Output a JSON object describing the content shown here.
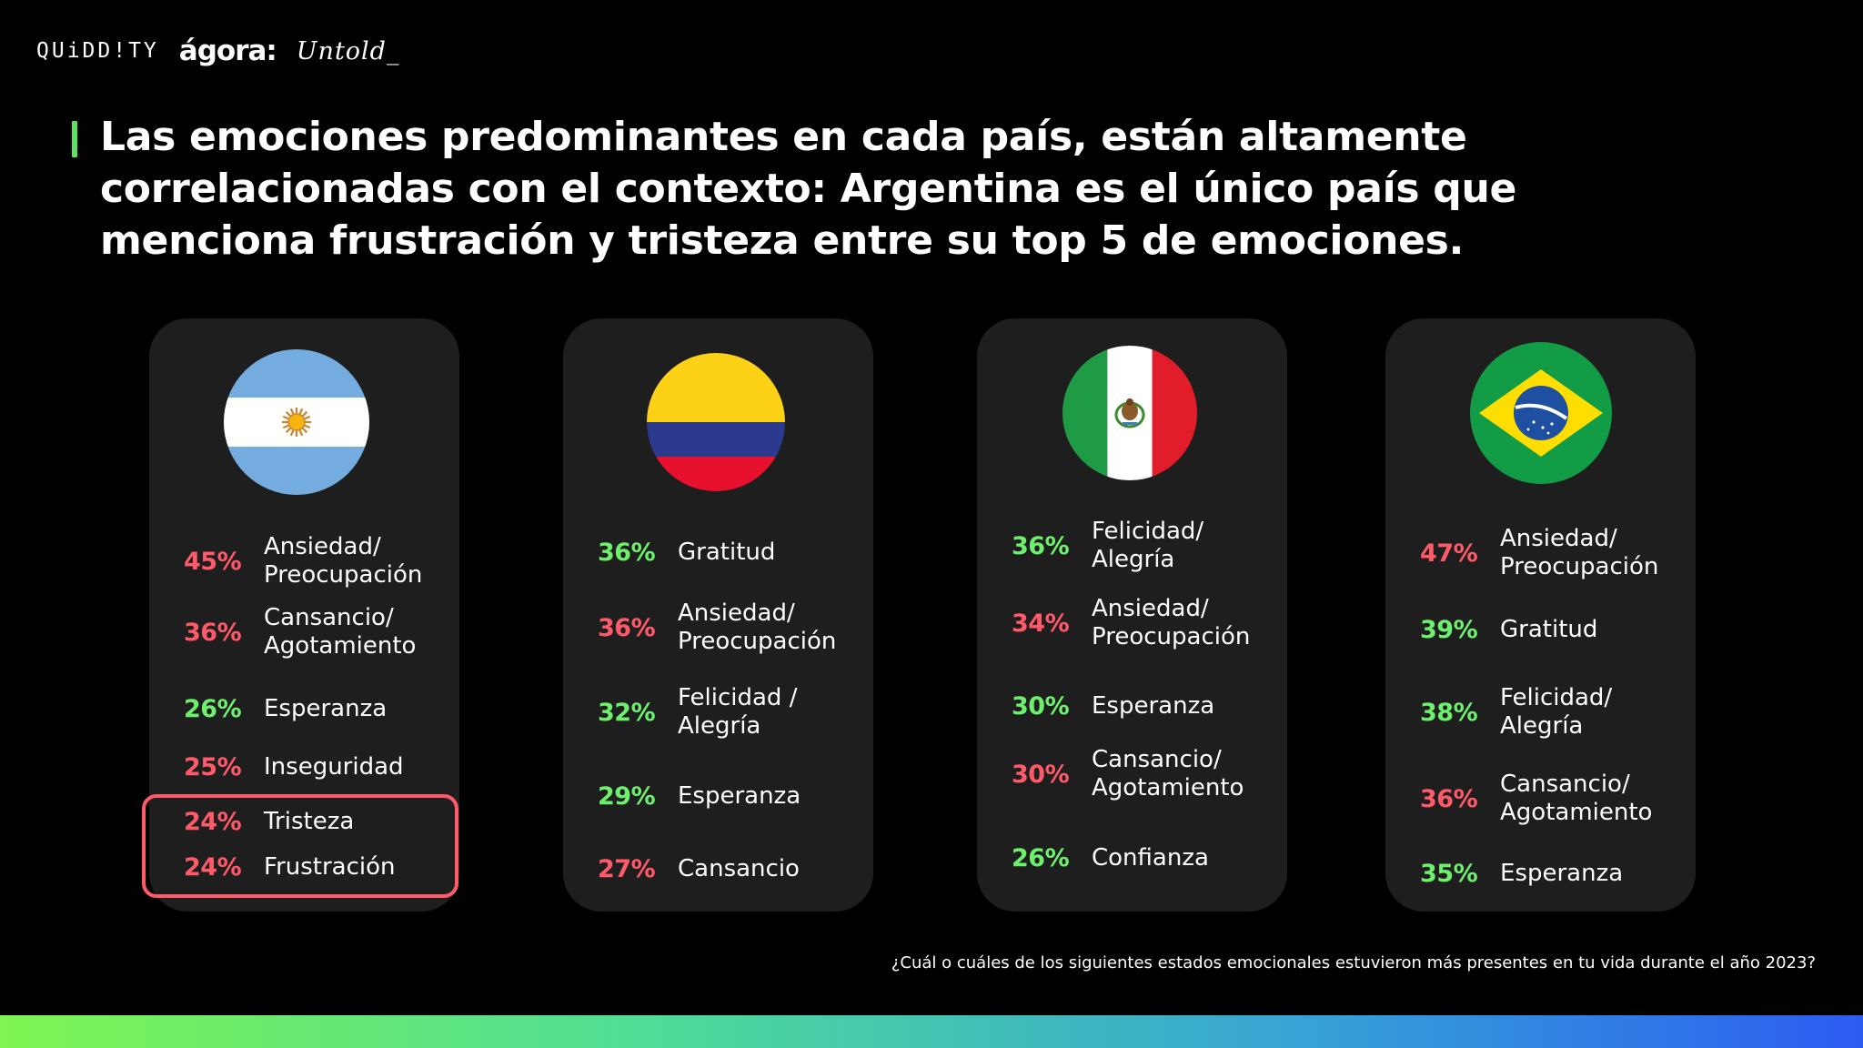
{
  "logos": {
    "quiddity": "QUiDD!TY",
    "agora": "ágora:",
    "untold": "Untold_"
  },
  "title": "Las emociones predominantes en cada país, están altamente correlacionadas con el contexto: Argentina es el único país que menciona frustración y tristeza entre su top 5 de emociones.",
  "colors": {
    "negative": "#ff5a6a",
    "positive": "#6ef06e",
    "accent": "#5be35b",
    "card": "#1e1e1e"
  },
  "cards": [
    {
      "flag": "argentina-flag",
      "items": [
        {
          "pct": "45%",
          "label": [
            "Ansiedad/",
            "Preocupación"
          ],
          "tone": "red"
        },
        {
          "pct": "36%",
          "label": [
            "Cansancio/",
            "Agotamiento"
          ],
          "tone": "red"
        },
        {
          "pct": "26%",
          "label": [
            "Esperanza"
          ],
          "tone": "green"
        },
        {
          "pct": "25%",
          "label": [
            "Inseguridad"
          ],
          "tone": "red"
        },
        {
          "pct": "24%",
          "label": [
            "Tristeza"
          ],
          "tone": "red"
        },
        {
          "pct": "24%",
          "label": [
            "Frustración"
          ],
          "tone": "red"
        }
      ]
    },
    {
      "flag": "colombia-flag",
      "items": [
        {
          "pct": "36%",
          "label": [
            "Gratitud"
          ],
          "tone": "green"
        },
        {
          "pct": "36%",
          "label": [
            "Ansiedad/",
            "Preocupación"
          ],
          "tone": "red"
        },
        {
          "pct": "32%",
          "label": [
            "Felicidad /",
            "Alegría"
          ],
          "tone": "green"
        },
        {
          "pct": "29%",
          "label": [
            "Esperanza"
          ],
          "tone": "green"
        },
        {
          "pct": "27%",
          "label": [
            "Cansancio"
          ],
          "tone": "red"
        }
      ]
    },
    {
      "flag": "mexico-flag",
      "items": [
        {
          "pct": "36%",
          "label": [
            "Felicidad/",
            "Alegría"
          ],
          "tone": "green"
        },
        {
          "pct": "34%",
          "label": [
            "Ansiedad/",
            "Preocupación"
          ],
          "tone": "red"
        },
        {
          "pct": "30%",
          "label": [
            "Esperanza"
          ],
          "tone": "green"
        },
        {
          "pct": "30%",
          "label": [
            "Cansancio/",
            "Agotamiento"
          ],
          "tone": "red"
        },
        {
          "pct": "26%",
          "label": [
            "Confianza"
          ],
          "tone": "green"
        }
      ]
    },
    {
      "flag": "brazil-flag",
      "items": [
        {
          "pct": "47%",
          "label": [
            "Ansiedad/",
            "Preocupación"
          ],
          "tone": "red"
        },
        {
          "pct": "39%",
          "label": [
            "Gratitud"
          ],
          "tone": "green"
        },
        {
          "pct": "38%",
          "label": [
            "Felicidad/",
            "Alegría"
          ],
          "tone": "green"
        },
        {
          "pct": "36%",
          "label": [
            "Cansancio/",
            "Agotamiento"
          ],
          "tone": "red"
        },
        {
          "pct": "35%",
          "label": [
            "Esperanza"
          ],
          "tone": "green"
        }
      ]
    }
  ],
  "footnote": "¿Cuál o cuáles de los siguientes estados emocionales estuvieron más presentes en tu vida durante el año 2023?"
}
